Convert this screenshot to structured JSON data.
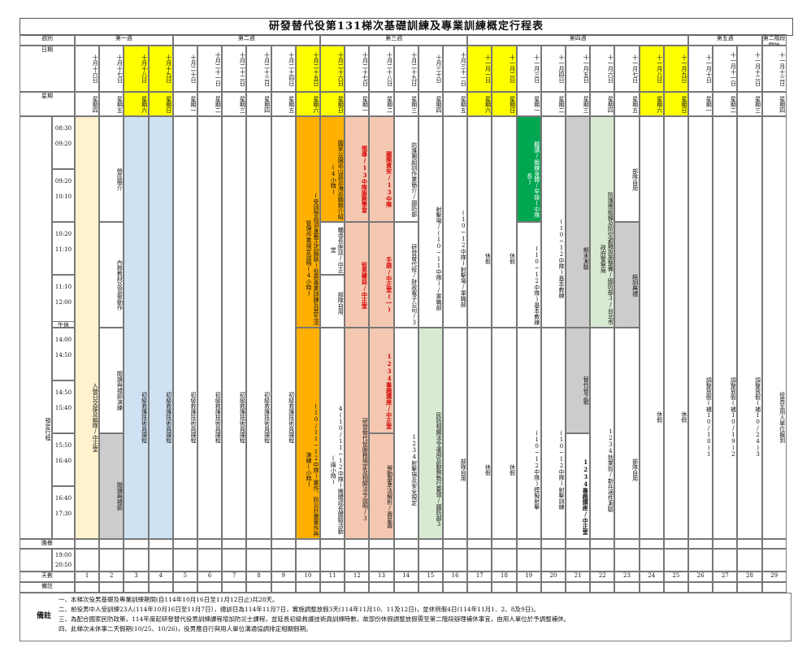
{
  "title": "研發替代役第131梯次基礎訓練及專業訓練概定行程表",
  "header_row_label": "週別",
  "weeks": [
    "第一週",
    "第二週",
    "第三週",
    "第四週",
    "第五週",
    "第二階段開始"
  ],
  "row_labels": {
    "date": "日期",
    "weekday": "星期",
    "day_count": "天數",
    "remark": "備註",
    "schedule": "預定行程",
    "noon": "午休",
    "evening": "晚餐"
  },
  "dates": [
    "十月十六日",
    "十月十七日",
    "十月十八日",
    "十月十九日",
    "十月二十日",
    "十月二十一日",
    "十月二十二日",
    "十月二十三日",
    "十月二十四日",
    "十月二十五日",
    "十月二十六日",
    "十月二十七日",
    "十月二十八日",
    "十月二十九日",
    "十月三十日",
    "十月三十一日",
    "十一月一日",
    "十一月二日",
    "十一月三日",
    "十一月四日",
    "十一月五日",
    "十一月六日",
    "十一月七日",
    "十一月八日",
    "十一月九日",
    "十一月十日",
    "十一月十一日",
    "十一月十二日",
    "十一月十三日"
  ],
  "weekdays": [
    "星期四",
    "星期五",
    "星期六",
    "星期日",
    "星期一",
    "星期二",
    "星期三",
    "星期四",
    "星期五",
    "星期六",
    "星期日",
    "星期一",
    "星期二",
    "星期三",
    "星期四",
    "星期五",
    "星期六",
    "星期日",
    "星期一",
    "星期二",
    "星期三",
    "星期四",
    "星期五",
    "星期六",
    "星期日",
    "星期一",
    "星期二",
    "星期三",
    "星期四"
  ],
  "day_numbers": [
    "1",
    "2",
    "3",
    "4",
    "5",
    "6",
    "7",
    "8",
    "9",
    "10",
    "11",
    "12",
    "13",
    "14",
    "15",
    "16",
    "17",
    "18",
    "19",
    "20",
    "21",
    "22",
    "23",
    "24",
    "25",
    "26",
    "27",
    "28",
    "29"
  ],
  "time_labels": [
    "08:30",
    "09:20",
    "09:20",
    "10:10",
    "10:20",
    "11:10",
    "11:10",
    "12:00",
    "14:00",
    "14:50",
    "14:50",
    "15:40",
    "15:50",
    "16:40",
    "16:40",
    "17:30",
    "19:00",
    "20:50"
  ],
  "cells": {
    "c1": "入營日交接及編隊/中正堂",
    "c2a": "營區簡介",
    "c2b": "內務教材及習衛動作",
    "c2c": "閱讀與禮節演練",
    "c2d": "閱讀與禮節",
    "basic": "初級救護技術員課程",
    "c10a": "(受訓學員須身著正式服裝)役男專業訓練及其生活管理作業規定說明(4小時)",
    "c10b": "(10/11~12中隊)實作、防災計畫實作與演練(小時)",
    "c11a": "國家公園巡山員及海巡職務介紹(4小時)",
    "c11b": "輔導長座談/中正堂",
    "c11c": "部隊自用",
    "c11d": "4(10/11~12中隊)團體成長體驗活動(兩小時)",
    "c12a": "領導/13中隊服務學習",
    "c12b": "役男權益/中正堂",
    "c12c": "研發替代役服務規定及相關法令說明/3",
    "c13a": "國際資安/13中隊",
    "c13b": "手語/中正堂(一)",
    "c13c": "1234專題講座/中正堂",
    "c13d": "勞動基準法解析/壽星壽",
    "c14a": "防護團組訓作業簡介/國防部",
    "c14b": "研發替代役/財政電子公司/3",
    "c14c": "1234射擊場及安全規定",
    "c15a": "射擊場/(10~11中隊)/軍職部",
    "c15b": "民防相關法令運用及勤務執行要領/國防部3",
    "c16a": "(10~12中隊)射擊場/軍職部",
    "c16b": "部隊自用",
    "rest": "休假",
    "c19a": "聽講/鍛鍊身體/早操(中隊長)",
    "c19b": "(10~12中隊)基本教練",
    "c19c": "(10~12中隊)模擬射擊",
    "c20a": "(10~12中隊)基本教練",
    "c20b": "(10~12中隊)射擊訓練",
    "c21a": "期末測驗",
    "c21b": "替代役之歌",
    "c21c": "1234專題講座/中正堂",
    "c22a": "防護團組織及防空避難設施整備/國防部3/台北市政府警察局",
    "c22b": "1234就業前/新兵適性測驗",
    "c23a": "部隊自用",
    "c23b": "結訓典禮",
    "c23c": "部隊自用",
    "c26": "調整放假(補10/18)1",
    "c27": "調整放假(補10/19)2",
    "c28": "調整放假(補10/24)3",
    "c29": "役男至用人單位報到"
  },
  "notes_tag": "備註",
  "notes": [
    "一、本梯次役男基礎及專業訓練期間(自114年10月16日至11月12日止)共28天。",
    "二、前役男中人受訓練23人(114年10月16日至11月7日），總訓日為114年11月7日，實施調整放假3天(114年11月10、11及12日)，並休例假4日(114年11月1、2、8及9日)。",
    "三、為配合國家民防政策，114年度起研發替代役男訓練課程增加防災士課程，並延長初級救護技術員訓練時數，故部份休假調整放假需至第二階段辦理補休事宜，由用人單位於予調整補休。",
    "四、此梯次未休事二天假期(10/25、10/26)，役男應自行與用人單位溝通協調排定相關假期。"
  ]
}
